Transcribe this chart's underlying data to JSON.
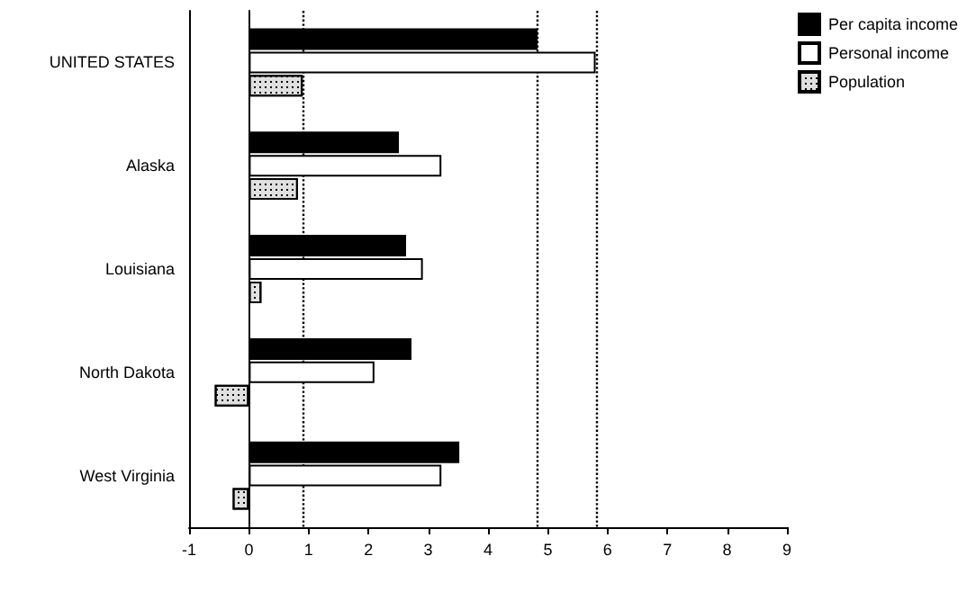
{
  "chart_data": {
    "type": "bar",
    "orientation": "horizontal",
    "categories": [
      "UNITED STATES",
      "Alaska",
      "Louisiana",
      "North Dakota",
      "West Virginia"
    ],
    "series": [
      {
        "name": "Per capita income",
        "color": "#000000",
        "values": [
          4.83,
          2.51,
          2.63,
          2.72,
          3.52
        ]
      },
      {
        "name": "Personal income",
        "color": "#ffffff",
        "values": [
          5.8,
          3.22,
          2.91,
          2.1,
          3.22
        ]
      },
      {
        "name": "Population",
        "color": "#e0e0e0",
        "values": [
          0.9,
          0.82,
          0.21,
          -0.57,
          -0.27
        ]
      }
    ],
    "xlim": [
      -1,
      9
    ],
    "xticks": [
      -1,
      0,
      1,
      2,
      3,
      4,
      5,
      6,
      7,
      8,
      9
    ],
    "ref_lines": [
      {
        "axis": "x",
        "value": 0.9,
        "line_style": "dotted"
      },
      {
        "axis": "x",
        "value": 4.83,
        "line_style": "dotted"
      },
      {
        "axis": "x",
        "value": 5.8,
        "line_style": "dotted"
      }
    ],
    "legend": "top right"
  }
}
